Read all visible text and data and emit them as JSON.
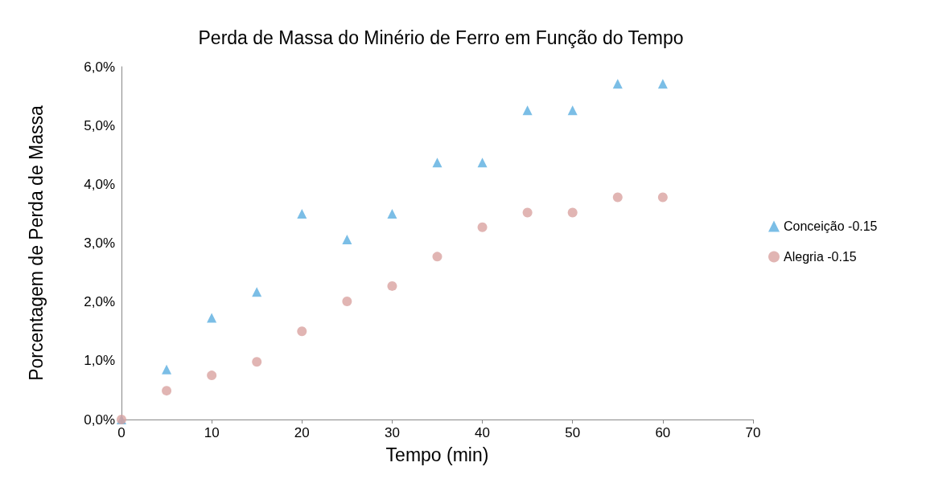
{
  "chart_data": {
    "type": "scatter",
    "title": "Perda de Massa do Minério de Ferro em Função do Tempo",
    "xlabel": "Tempo (min)",
    "ylabel": "Porcentagem de Perda de Massa",
    "x": [
      0,
      5,
      10,
      15,
      20,
      25,
      30,
      35,
      40,
      45,
      50,
      55,
      60
    ],
    "series": [
      {
        "name": "Conceição -0.15",
        "color": "#5aaee0",
        "marker": "triangle",
        "values": [
          0,
          0.85,
          1.73,
          2.17,
          3.5,
          3.06,
          3.5,
          4.37,
          4.37,
          5.26,
          5.26,
          5.71,
          5.71
        ]
      },
      {
        "name": "Alegria -0.15",
        "color": "#d9a3a0",
        "marker": "circle",
        "values": [
          0,
          0.49,
          0.75,
          0.98,
          1.5,
          2.01,
          2.27,
          2.77,
          3.27,
          3.52,
          3.52,
          3.78,
          3.78
        ]
      }
    ],
    "xlim": [
      0,
      70
    ],
    "xticks": [
      0,
      10,
      20,
      30,
      40,
      50,
      60,
      70
    ],
    "ylim": [
      0,
      6
    ],
    "yticks": [
      {
        "value": 0,
        "label": "0,0%"
      },
      {
        "value": 1,
        "label": "1,0%"
      },
      {
        "value": 2,
        "label": "2,0%"
      },
      {
        "value": 3,
        "label": "3,0%"
      },
      {
        "value": 4,
        "label": "4,0%"
      },
      {
        "value": 5,
        "label": "5,0%"
      },
      {
        "value": 6,
        "label": "6,0%"
      }
    ],
    "grid": false,
    "legend": "right"
  }
}
